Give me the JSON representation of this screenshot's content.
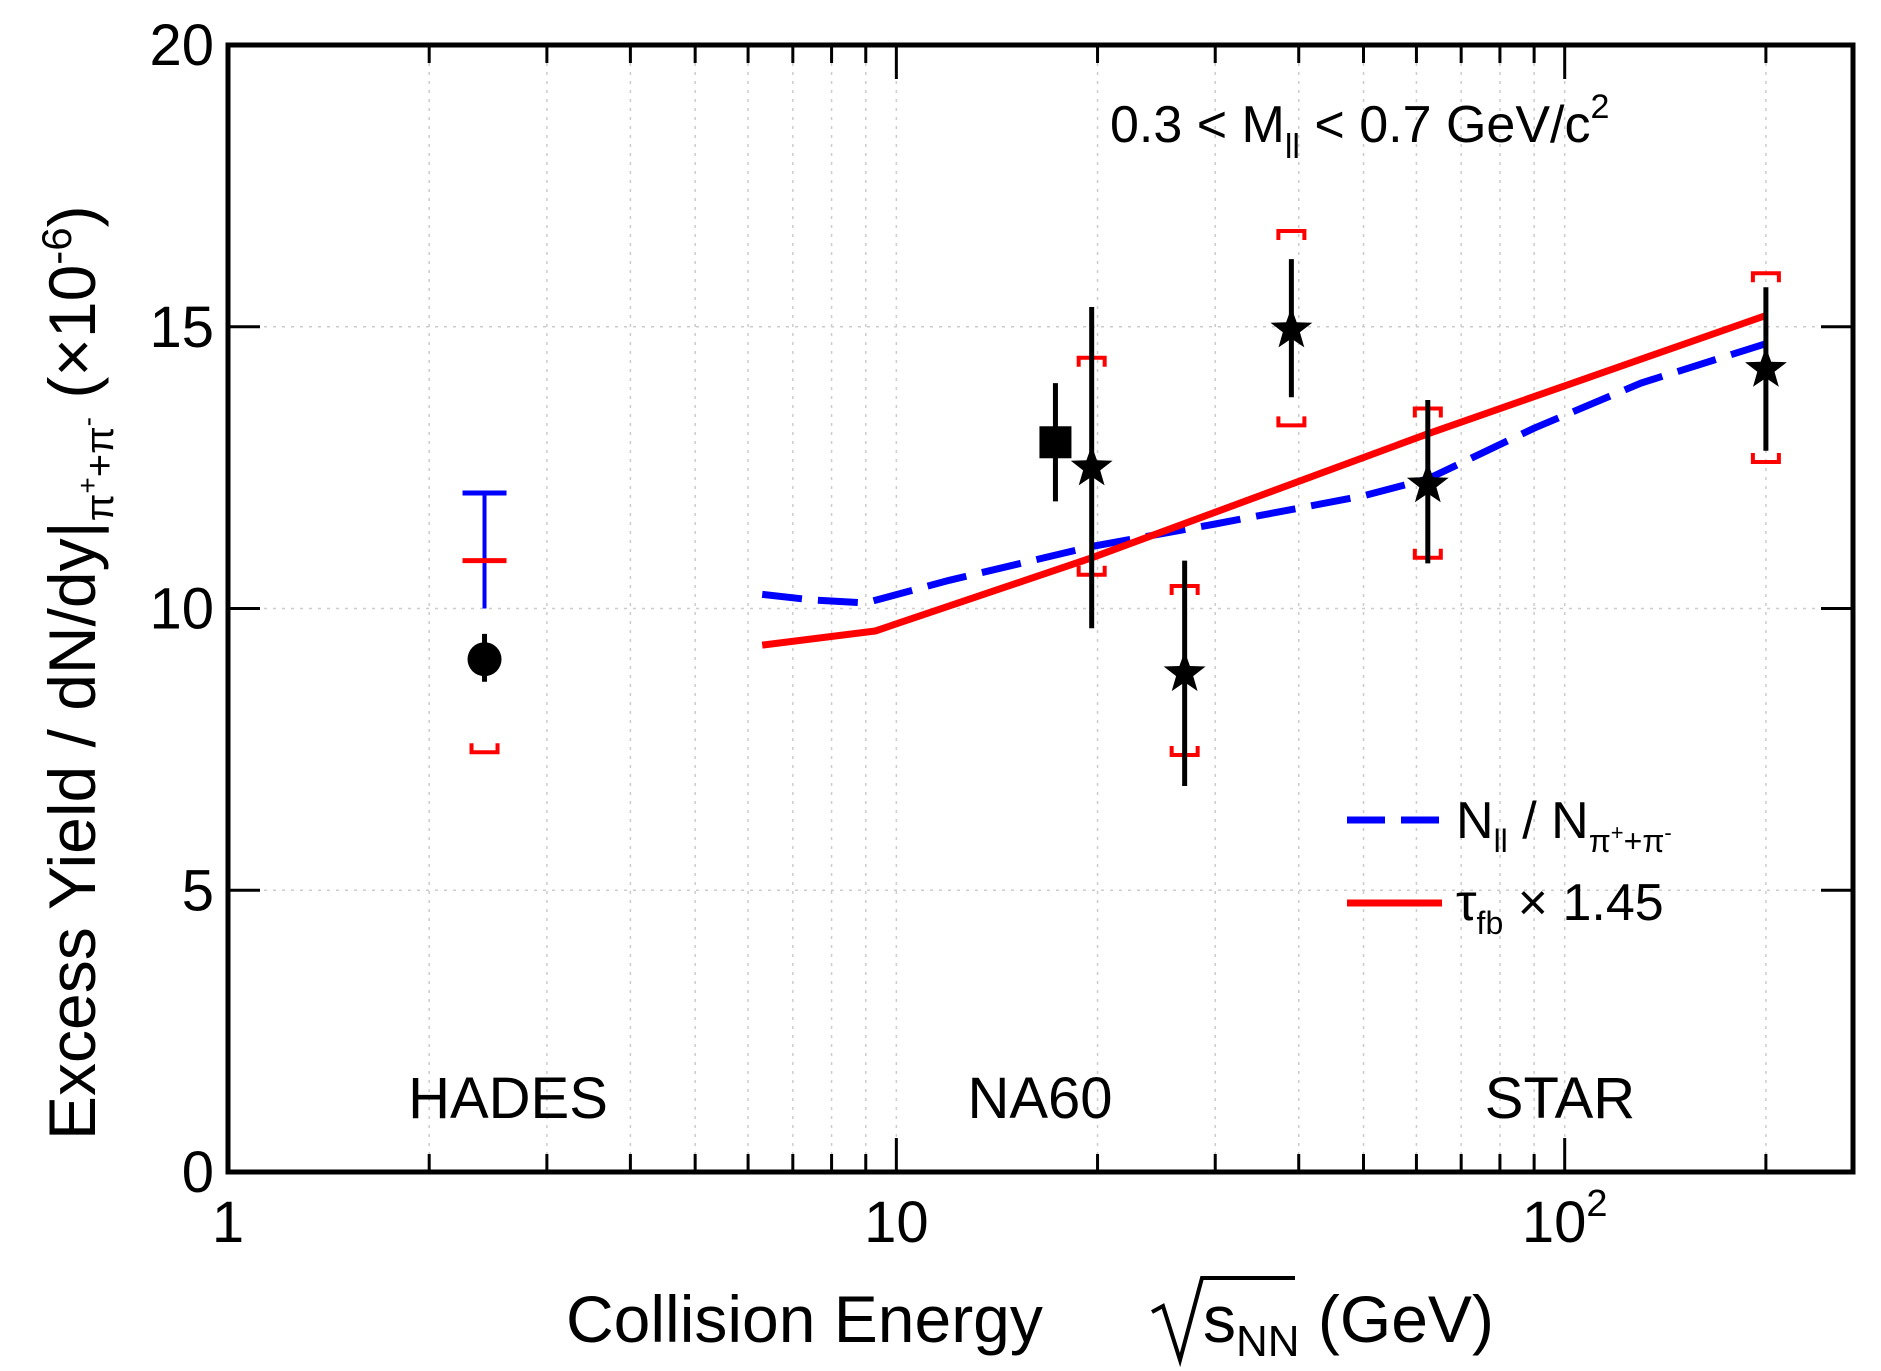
{
  "chart_data": {
    "type": "scatter",
    "x_scale": "log",
    "xlim": [
      1,
      270
    ],
    "ylim": [
      0,
      20
    ],
    "grid": true,
    "x_ticks": [
      {
        "value": 1,
        "label": "1",
        "sup": ""
      },
      {
        "value": 10,
        "label": "10",
        "sup": ""
      },
      {
        "value": 100,
        "label": "10",
        "sup": "2"
      }
    ],
    "y_ticks": [
      0,
      5,
      10,
      15,
      20
    ],
    "xlabel": {
      "pre": "Collision Energy ",
      "s": "s",
      "sub": "NN",
      "post": " (GeV)"
    },
    "ylabel": {
      "main": "Excess Yield / dN/dy|",
      "sub": "π",
      "sub_sup1": "+",
      "sub_mid": "+π",
      "sub_sup2": "-",
      "post": " (×10",
      "exp": "-6",
      "close": ")"
    },
    "annotation": {
      "pre": "0.3 < M",
      "sub": "ll",
      "mid": " < 0.7 GeV/c",
      "sup": "2"
    },
    "regions": [
      {
        "name": "hades",
        "label": "HADES",
        "x": 2.6
      },
      {
        "name": "na60",
        "label": "NA60",
        "x": 12.5
      },
      {
        "name": "star",
        "label": "STAR",
        "x": 100
      }
    ],
    "legend": {
      "position": "bottom-right",
      "entries": [
        {
          "name": "blue-dashed",
          "label": "N",
          "label_sub": "ll",
          "label_mid": " / N",
          "label_sub2": "π",
          "label_sup2a": "+",
          "label_sub3": "+π",
          "label_sup2b": "-",
          "color": "#0000ff",
          "dash": true
        },
        {
          "name": "red-solid",
          "label": "τ",
          "label_sub": "fb",
          "label_mid": " × 1.45",
          "color": "#ff0000",
          "dash": false
        }
      ]
    },
    "series": [
      {
        "name": "N_ll / N_pi",
        "color": "#0000ff",
        "style": "dashed",
        "x": [
          6.3,
          7.5,
          9,
          12,
          19.6,
          30,
          50,
          62.4,
          90,
          130,
          200
        ],
        "y": [
          10.25,
          10.15,
          10.1,
          10.5,
          11.1,
          11.5,
          12.0,
          12.3,
          13.2,
          14.0,
          14.7
        ]
      },
      {
        "name": "tau_fb x 1.45",
        "color": "#ff0000",
        "style": "solid",
        "x": [
          6.3,
          9.3,
          19.6,
          62.4,
          200
        ],
        "y": [
          9.35,
          9.6,
          10.9,
          13.1,
          15.2
        ]
      }
    ],
    "hades": {
      "point": {
        "x": 2.42,
        "y": 9.1,
        "marker": "circle",
        "err_low": 0.4,
        "err_high": 0.45
      },
      "sys_red": {
        "low": 7.45,
        "high": 10.85
      },
      "sys_blue": {
        "high": 12.05,
        "low": 10.0
      }
    },
    "na60": {
      "point": {
        "x": 17.3,
        "y": 12.95,
        "marker": "square",
        "err_low": 1.05,
        "err_high": 1.05
      }
    },
    "star": [
      {
        "x": 19.6,
        "y": 12.5,
        "err_low": 2.85,
        "err_high": 2.85,
        "sys_low": 10.6,
        "sys_high": 14.45
      },
      {
        "x": 27,
        "y": 8.85,
        "err_low": 2.0,
        "err_high": 2.0,
        "sys_low": 7.4,
        "sys_high": 10.4
      },
      {
        "x": 39,
        "y": 14.95,
        "err_low": 1.2,
        "err_high": 1.25,
        "sys_low": 13.25,
        "sys_high": 16.7
      },
      {
        "x": 62.4,
        "y": 12.2,
        "err_low": 1.4,
        "err_high": 1.5,
        "sys_low": 10.9,
        "sys_high": 13.55
      },
      {
        "x": 200,
        "y": 14.25,
        "err_low": 1.45,
        "err_high": 1.45,
        "sys_low": 12.6,
        "sys_high": 15.95
      }
    ]
  }
}
